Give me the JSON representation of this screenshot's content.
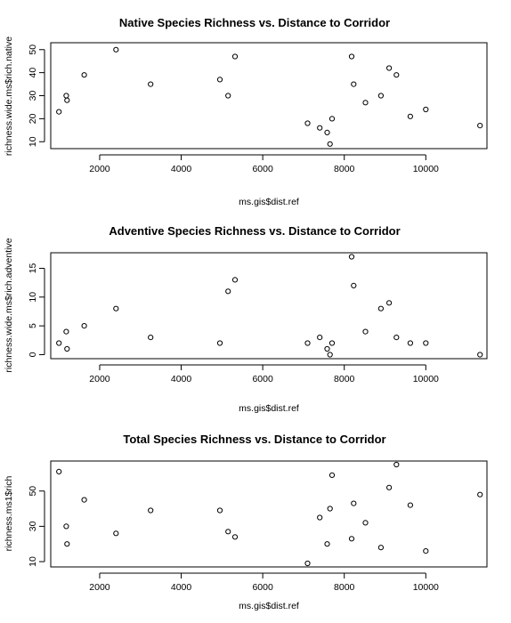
{
  "chart_data": [
    {
      "type": "scatter",
      "title": "Native Species Richness vs. Distance to Corridor",
      "xlabel": "ms.gis$dist.ref",
      "ylabel": "richness.wide.ms$rich.native",
      "xlim": [
        800,
        11500
      ],
      "ylim": [
        7,
        53
      ],
      "xticks": [
        "2000",
        "4000",
        "6000",
        "8000",
        "10000"
      ],
      "yticks": [
        "10",
        "20",
        "30",
        "40",
        "50"
      ],
      "grid": false,
      "x": [
        1000,
        1180,
        1200,
        1620,
        2400,
        3250,
        4950,
        5150,
        5320,
        7100,
        7400,
        7580,
        7650,
        7700,
        8180,
        8230,
        8520,
        8900,
        9100,
        9280,
        9620,
        10000,
        11330
      ],
      "y": [
        23,
        30,
        28,
        39,
        50,
        35,
        37,
        30,
        47,
        18,
        16,
        14,
        9,
        20,
        47,
        35,
        27,
        30,
        42,
        39,
        21,
        24,
        17
      ]
    },
    {
      "type": "scatter",
      "title": "Adventive Species Richness vs. Distance to Corridor",
      "xlabel": "ms.gis$dist.ref",
      "ylabel": "richness.wide.ms$rich.adventive",
      "xlim": [
        800,
        11500
      ],
      "ylim": [
        -0.7,
        17.7
      ],
      "xticks": [
        "2000",
        "4000",
        "6000",
        "8000",
        "10000"
      ],
      "yticks": [
        "0",
        "5",
        "10",
        "15"
      ],
      "grid": false,
      "x": [
        1000,
        1180,
        1200,
        1620,
        2400,
        3250,
        4950,
        5150,
        5320,
        7100,
        7400,
        7580,
        7650,
        7700,
        8180,
        8230,
        8520,
        8900,
        9100,
        9280,
        9620,
        10000,
        11330
      ],
      "y": [
        2,
        4,
        1,
        5,
        8,
        3,
        2,
        11,
        13,
        2,
        3,
        1,
        0,
        2,
        17,
        12,
        4,
        8,
        9,
        3,
        2,
        2,
        0
      ]
    },
    {
      "type": "scatter",
      "title": "Total Species Richness vs. Distance to Corridor",
      "xlabel": "ms.gis$dist.ref",
      "ylabel": "richness.ms1$rich",
      "xlim": [
        800,
        11500
      ],
      "ylim": [
        7,
        67
      ],
      "xticks": [
        "2000",
        "4000",
        "6000",
        "8000",
        "10000"
      ],
      "yticks": [
        "10",
        "30",
        "50"
      ],
      "grid": false,
      "x": [
        1000,
        1180,
        1200,
        1620,
        2400,
        3250,
        4950,
        5150,
        5320,
        7100,
        7400,
        7580,
        7650,
        7700,
        8180,
        8230,
        8520,
        8900,
        9100,
        9280,
        9620,
        10000,
        11330
      ],
      "y": [
        61,
        30,
        20,
        45,
        26,
        39,
        39,
        27,
        24,
        9,
        35,
        20,
        40,
        59,
        23,
        43,
        32,
        18,
        52,
        65,
        42,
        16,
        48
      ]
    }
  ]
}
